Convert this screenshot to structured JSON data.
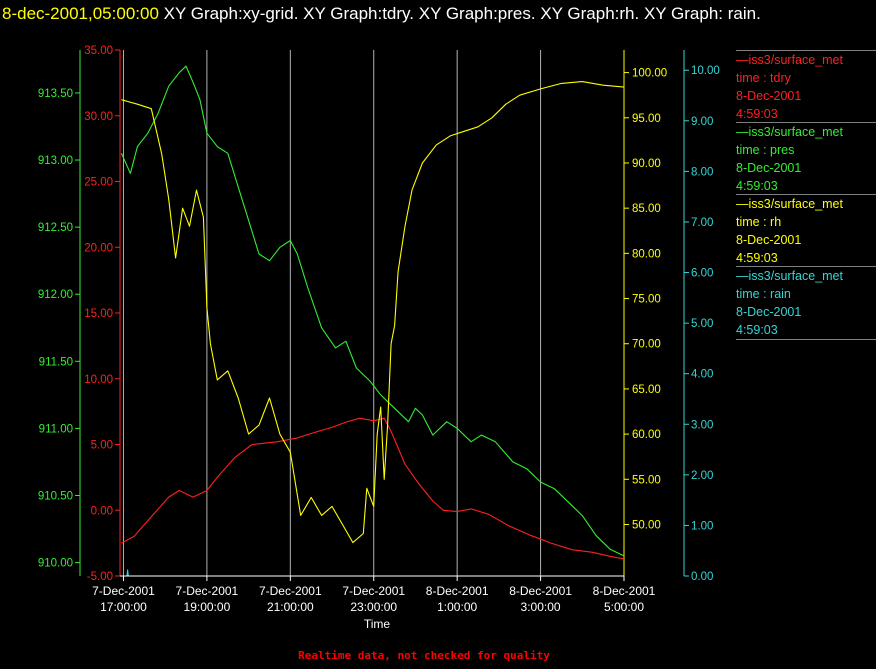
{
  "title": {
    "timestamp": "8-dec-2001,05:00:00",
    "text": "  XY Graph:xy-grid.  XY Graph:tdry.  XY Graph:pres.  XY Graph:rh.  XY Graph: rain."
  },
  "footer": "Realtime data, not checked for quality",
  "colors": {
    "tdry": "#ff2020",
    "pres": "#33ee33",
    "rh": "#ffff00",
    "rain": "#33d6d6",
    "grid": "#b3b3b3"
  },
  "legend": [
    {
      "line1": "—iss3/surface_met",
      "line2": "time : tdry",
      "line3": "8-Dec-2001",
      "line4": "4:59:03"
    },
    {
      "line1": "—iss3/surface_met",
      "line2": "time : pres",
      "line3": "8-Dec-2001",
      "line4": "4:59:03"
    },
    {
      "line1": "—iss3/surface_met",
      "line2": "time : rh",
      "line3": "8-Dec-2001",
      "line4": "4:59:03"
    },
    {
      "line1": "—iss3/surface_met",
      "line2": "time : rain",
      "line3": "8-Dec-2001",
      "line4": "4:59:03"
    }
  ],
  "chart_data": {
    "type": "line",
    "xlabel": "Time",
    "x_ticks": [
      {
        "date": "7-Dec-2001",
        "time": "17:00:00",
        "x": "2001-12-07 17:00"
      },
      {
        "date": "7-Dec-2001",
        "time": "19:00:00",
        "x": "2001-12-07 19:00"
      },
      {
        "date": "7-Dec-2001",
        "time": "21:00:00",
        "x": "2001-12-07 21:00"
      },
      {
        "date": "7-Dec-2001",
        "time": "23:00:00",
        "x": "2001-12-07 23:00"
      },
      {
        "date": "8-Dec-2001",
        "time": "1:00:00",
        "x": "2001-12-08 01:00"
      },
      {
        "date": "8-Dec-2001",
        "time": "3:00:00",
        "x": "2001-12-08 03:00"
      },
      {
        "date": "8-Dec-2001",
        "time": "5:00:00",
        "x": "2001-12-08 05:00"
      }
    ],
    "xlim": [
      "2001-12-07 16:55",
      "2001-12-08 05:00"
    ],
    "grid": "vertical",
    "axes": [
      {
        "id": "tdry",
        "ylim": [
          -5,
          35
        ],
        "ticks": [
          "-5.00",
          "0.00",
          "5.00",
          "10.00",
          "15.00",
          "20.00",
          "25.00",
          "30.00",
          "35.00"
        ]
      },
      {
        "id": "pres",
        "ylim": [
          909.9,
          913.82
        ],
        "ticks": [
          "910.00",
          "910.50",
          "911.00",
          "911.50",
          "912.00",
          "912.50",
          "913.00",
          "913.50"
        ]
      },
      {
        "id": "rh",
        "ylim": [
          44.3,
          102.5
        ],
        "ticks": [
          "50.00",
          "55.00",
          "60.00",
          "65.00",
          "70.00",
          "75.00",
          "80.00",
          "85.00",
          "90.00",
          "95.00",
          "100.00"
        ]
      },
      {
        "id": "rain",
        "ylim": [
          0,
          10.4
        ],
        "ticks": [
          "0.00",
          "1.00",
          "2.00",
          "3.00",
          "4.00",
          "5.00",
          "6.00",
          "7.00",
          "8.00",
          "9.00",
          "10.00"
        ]
      }
    ],
    "series": [
      {
        "id": "tdry",
        "axis": "tdry",
        "points": [
          [
            "2001-12-07 16:57",
            -2.5
          ],
          [
            "2001-12-07 17:15",
            -2.0
          ],
          [
            "2001-12-07 17:40",
            -0.5
          ],
          [
            "2001-12-07 18:05",
            1.0
          ],
          [
            "2001-12-07 18:20",
            1.5
          ],
          [
            "2001-12-07 18:40",
            1.0
          ],
          [
            "2001-12-07 19:00",
            1.5
          ],
          [
            "2001-12-07 19:15",
            2.5
          ],
          [
            "2001-12-07 19:40",
            4.0
          ],
          [
            "2001-12-07 20:05",
            5.0
          ],
          [
            "2001-12-07 20:40",
            5.2
          ],
          [
            "2001-12-07 21:10",
            5.5
          ],
          [
            "2001-12-07 21:40",
            6.0
          ],
          [
            "2001-12-07 22:00",
            6.3
          ],
          [
            "2001-12-07 22:20",
            6.7
          ],
          [
            "2001-12-07 22:40",
            7.0
          ],
          [
            "2001-12-07 23:00",
            6.8
          ],
          [
            "2001-12-07 23:15",
            7.0
          ],
          [
            "2001-12-07 23:25",
            6.0
          ],
          [
            "2001-12-07 23:45",
            3.5
          ],
          [
            "2001-12-08 00:05",
            2.0
          ],
          [
            "2001-12-08 00:25",
            0.7
          ],
          [
            "2001-12-08 00:40",
            0.0
          ],
          [
            "2001-12-08 01:00",
            -0.1
          ],
          [
            "2001-12-08 01:20",
            0.1
          ],
          [
            "2001-12-08 01:45",
            -0.3
          ],
          [
            "2001-12-08 02:15",
            -1.2
          ],
          [
            "2001-12-08 02:45",
            -1.9
          ],
          [
            "2001-12-08 03:15",
            -2.5
          ],
          [
            "2001-12-08 03:45",
            -3.0
          ],
          [
            "2001-12-08 04:15",
            -3.2
          ],
          [
            "2001-12-08 04:40",
            -3.5
          ],
          [
            "2001-12-08 05:00",
            -3.7
          ]
        ]
      },
      {
        "id": "pres",
        "axis": "pres",
        "points": [
          [
            "2001-12-07 16:57",
            913.05
          ],
          [
            "2001-12-07 17:10",
            912.9
          ],
          [
            "2001-12-07 17:20",
            913.1
          ],
          [
            "2001-12-07 17:35",
            913.2
          ],
          [
            "2001-12-07 17:50",
            913.35
          ],
          [
            "2001-12-07 18:05",
            913.55
          ],
          [
            "2001-12-07 18:20",
            913.65
          ],
          [
            "2001-12-07 18:30",
            913.7
          ],
          [
            "2001-12-07 18:40",
            913.58
          ],
          [
            "2001-12-07 18:50",
            913.45
          ],
          [
            "2001-12-07 19:00",
            913.2
          ],
          [
            "2001-12-07 19:15",
            913.1
          ],
          [
            "2001-12-07 19:30",
            913.05
          ],
          [
            "2001-12-07 19:45",
            912.8
          ],
          [
            "2001-12-07 20:00",
            912.55
          ],
          [
            "2001-12-07 20:15",
            912.3
          ],
          [
            "2001-12-07 20:30",
            912.25
          ],
          [
            "2001-12-07 20:45",
            912.35
          ],
          [
            "2001-12-07 21:00",
            912.4
          ],
          [
            "2001-12-07 21:10",
            912.3
          ],
          [
            "2001-12-07 21:25",
            912.05
          ],
          [
            "2001-12-07 21:45",
            911.75
          ],
          [
            "2001-12-07 22:05",
            911.6
          ],
          [
            "2001-12-07 22:20",
            911.65
          ],
          [
            "2001-12-07 22:35",
            911.45
          ],
          [
            "2001-12-07 22:55",
            911.35
          ],
          [
            "2001-12-07 23:10",
            911.25
          ],
          [
            "2001-12-07 23:30",
            911.15
          ],
          [
            "2001-12-07 23:50",
            911.05
          ],
          [
            "2001-12-08 00:00",
            911.15
          ],
          [
            "2001-12-08 00:10",
            911.1
          ],
          [
            "2001-12-08 00:25",
            910.95
          ],
          [
            "2001-12-08 00:45",
            911.05
          ],
          [
            "2001-12-08 01:00",
            911.0
          ],
          [
            "2001-12-08 01:20",
            910.9
          ],
          [
            "2001-12-08 01:35",
            910.95
          ],
          [
            "2001-12-08 01:55",
            910.9
          ],
          [
            "2001-12-08 02:20",
            910.75
          ],
          [
            "2001-12-08 02:40",
            910.7
          ],
          [
            "2001-12-08 03:00",
            910.6
          ],
          [
            "2001-12-08 03:20",
            910.55
          ],
          [
            "2001-12-08 03:40",
            910.45
          ],
          [
            "2001-12-08 04:00",
            910.35
          ],
          [
            "2001-12-08 04:20",
            910.2
          ],
          [
            "2001-12-08 04:40",
            910.1
          ],
          [
            "2001-12-08 05:00",
            910.05
          ]
        ]
      },
      {
        "id": "rh",
        "axis": "rh",
        "points": [
          [
            "2001-12-07 16:57",
            97.0
          ],
          [
            "2001-12-07 17:20",
            96.5
          ],
          [
            "2001-12-07 17:40",
            96.0
          ],
          [
            "2001-12-07 17:55",
            91.0
          ],
          [
            "2001-12-07 18:05",
            86.0
          ],
          [
            "2001-12-07 18:15",
            79.5
          ],
          [
            "2001-12-07 18:25",
            85.0
          ],
          [
            "2001-12-07 18:35",
            83.0
          ],
          [
            "2001-12-07 18:45",
            87.0
          ],
          [
            "2001-12-07 18:55",
            84.0
          ],
          [
            "2001-12-07 19:00",
            74.0
          ],
          [
            "2001-12-07 19:05",
            70.0
          ],
          [
            "2001-12-07 19:15",
            66.0
          ],
          [
            "2001-12-07 19:30",
            67.0
          ],
          [
            "2001-12-07 19:45",
            64.0
          ],
          [
            "2001-12-07 20:00",
            60.0
          ],
          [
            "2001-12-07 20:15",
            61.0
          ],
          [
            "2001-12-07 20:30",
            64.0
          ],
          [
            "2001-12-07 20:45",
            60.0
          ],
          [
            "2001-12-07 21:00",
            58.0
          ],
          [
            "2001-12-07 21:15",
            51.0
          ],
          [
            "2001-12-07 21:30",
            53.0
          ],
          [
            "2001-12-07 21:45",
            51.0
          ],
          [
            "2001-12-07 22:00",
            52.0
          ],
          [
            "2001-12-07 22:15",
            50.0
          ],
          [
            "2001-12-07 22:30",
            48.0
          ],
          [
            "2001-12-07 22:45",
            49.0
          ],
          [
            "2001-12-07 22:50",
            54.0
          ],
          [
            "2001-12-07 23:00",
            52.0
          ],
          [
            "2001-12-07 23:05",
            60.0
          ],
          [
            "2001-12-07 23:10",
            63.0
          ],
          [
            "2001-12-07 23:15",
            55.0
          ],
          [
            "2001-12-07 23:20",
            61.0
          ],
          [
            "2001-12-07 23:25",
            70.0
          ],
          [
            "2001-12-07 23:30",
            72.0
          ],
          [
            "2001-12-07 23:35",
            78.0
          ],
          [
            "2001-12-07 23:45",
            83.0
          ],
          [
            "2001-12-07 23:55",
            87.0
          ],
          [
            "2001-12-08 00:10",
            90.0
          ],
          [
            "2001-12-08 00:30",
            92.0
          ],
          [
            "2001-12-08 00:50",
            93.0
          ],
          [
            "2001-12-08 01:10",
            93.5
          ],
          [
            "2001-12-08 01:30",
            94.0
          ],
          [
            "2001-12-08 01:50",
            95.0
          ],
          [
            "2001-12-08 02:10",
            96.5
          ],
          [
            "2001-12-08 02:30",
            97.5
          ],
          [
            "2001-12-08 03:00",
            98.2
          ],
          [
            "2001-12-08 03:30",
            98.8
          ],
          [
            "2001-12-08 04:00",
            99.0
          ],
          [
            "2001-12-08 04:30",
            98.6
          ],
          [
            "2001-12-08 05:00",
            98.4
          ]
        ]
      },
      {
        "id": "rain",
        "axis": "rain",
        "points": [
          [
            "2001-12-07 16:57",
            0.0
          ],
          [
            "2001-12-07 17:05",
            0.0
          ],
          [
            "2001-12-07 17:06",
            0.12
          ],
          [
            "2001-12-07 17:07",
            0.0
          ],
          [
            "2001-12-08 05:00",
            0.0
          ]
        ]
      }
    ]
  }
}
